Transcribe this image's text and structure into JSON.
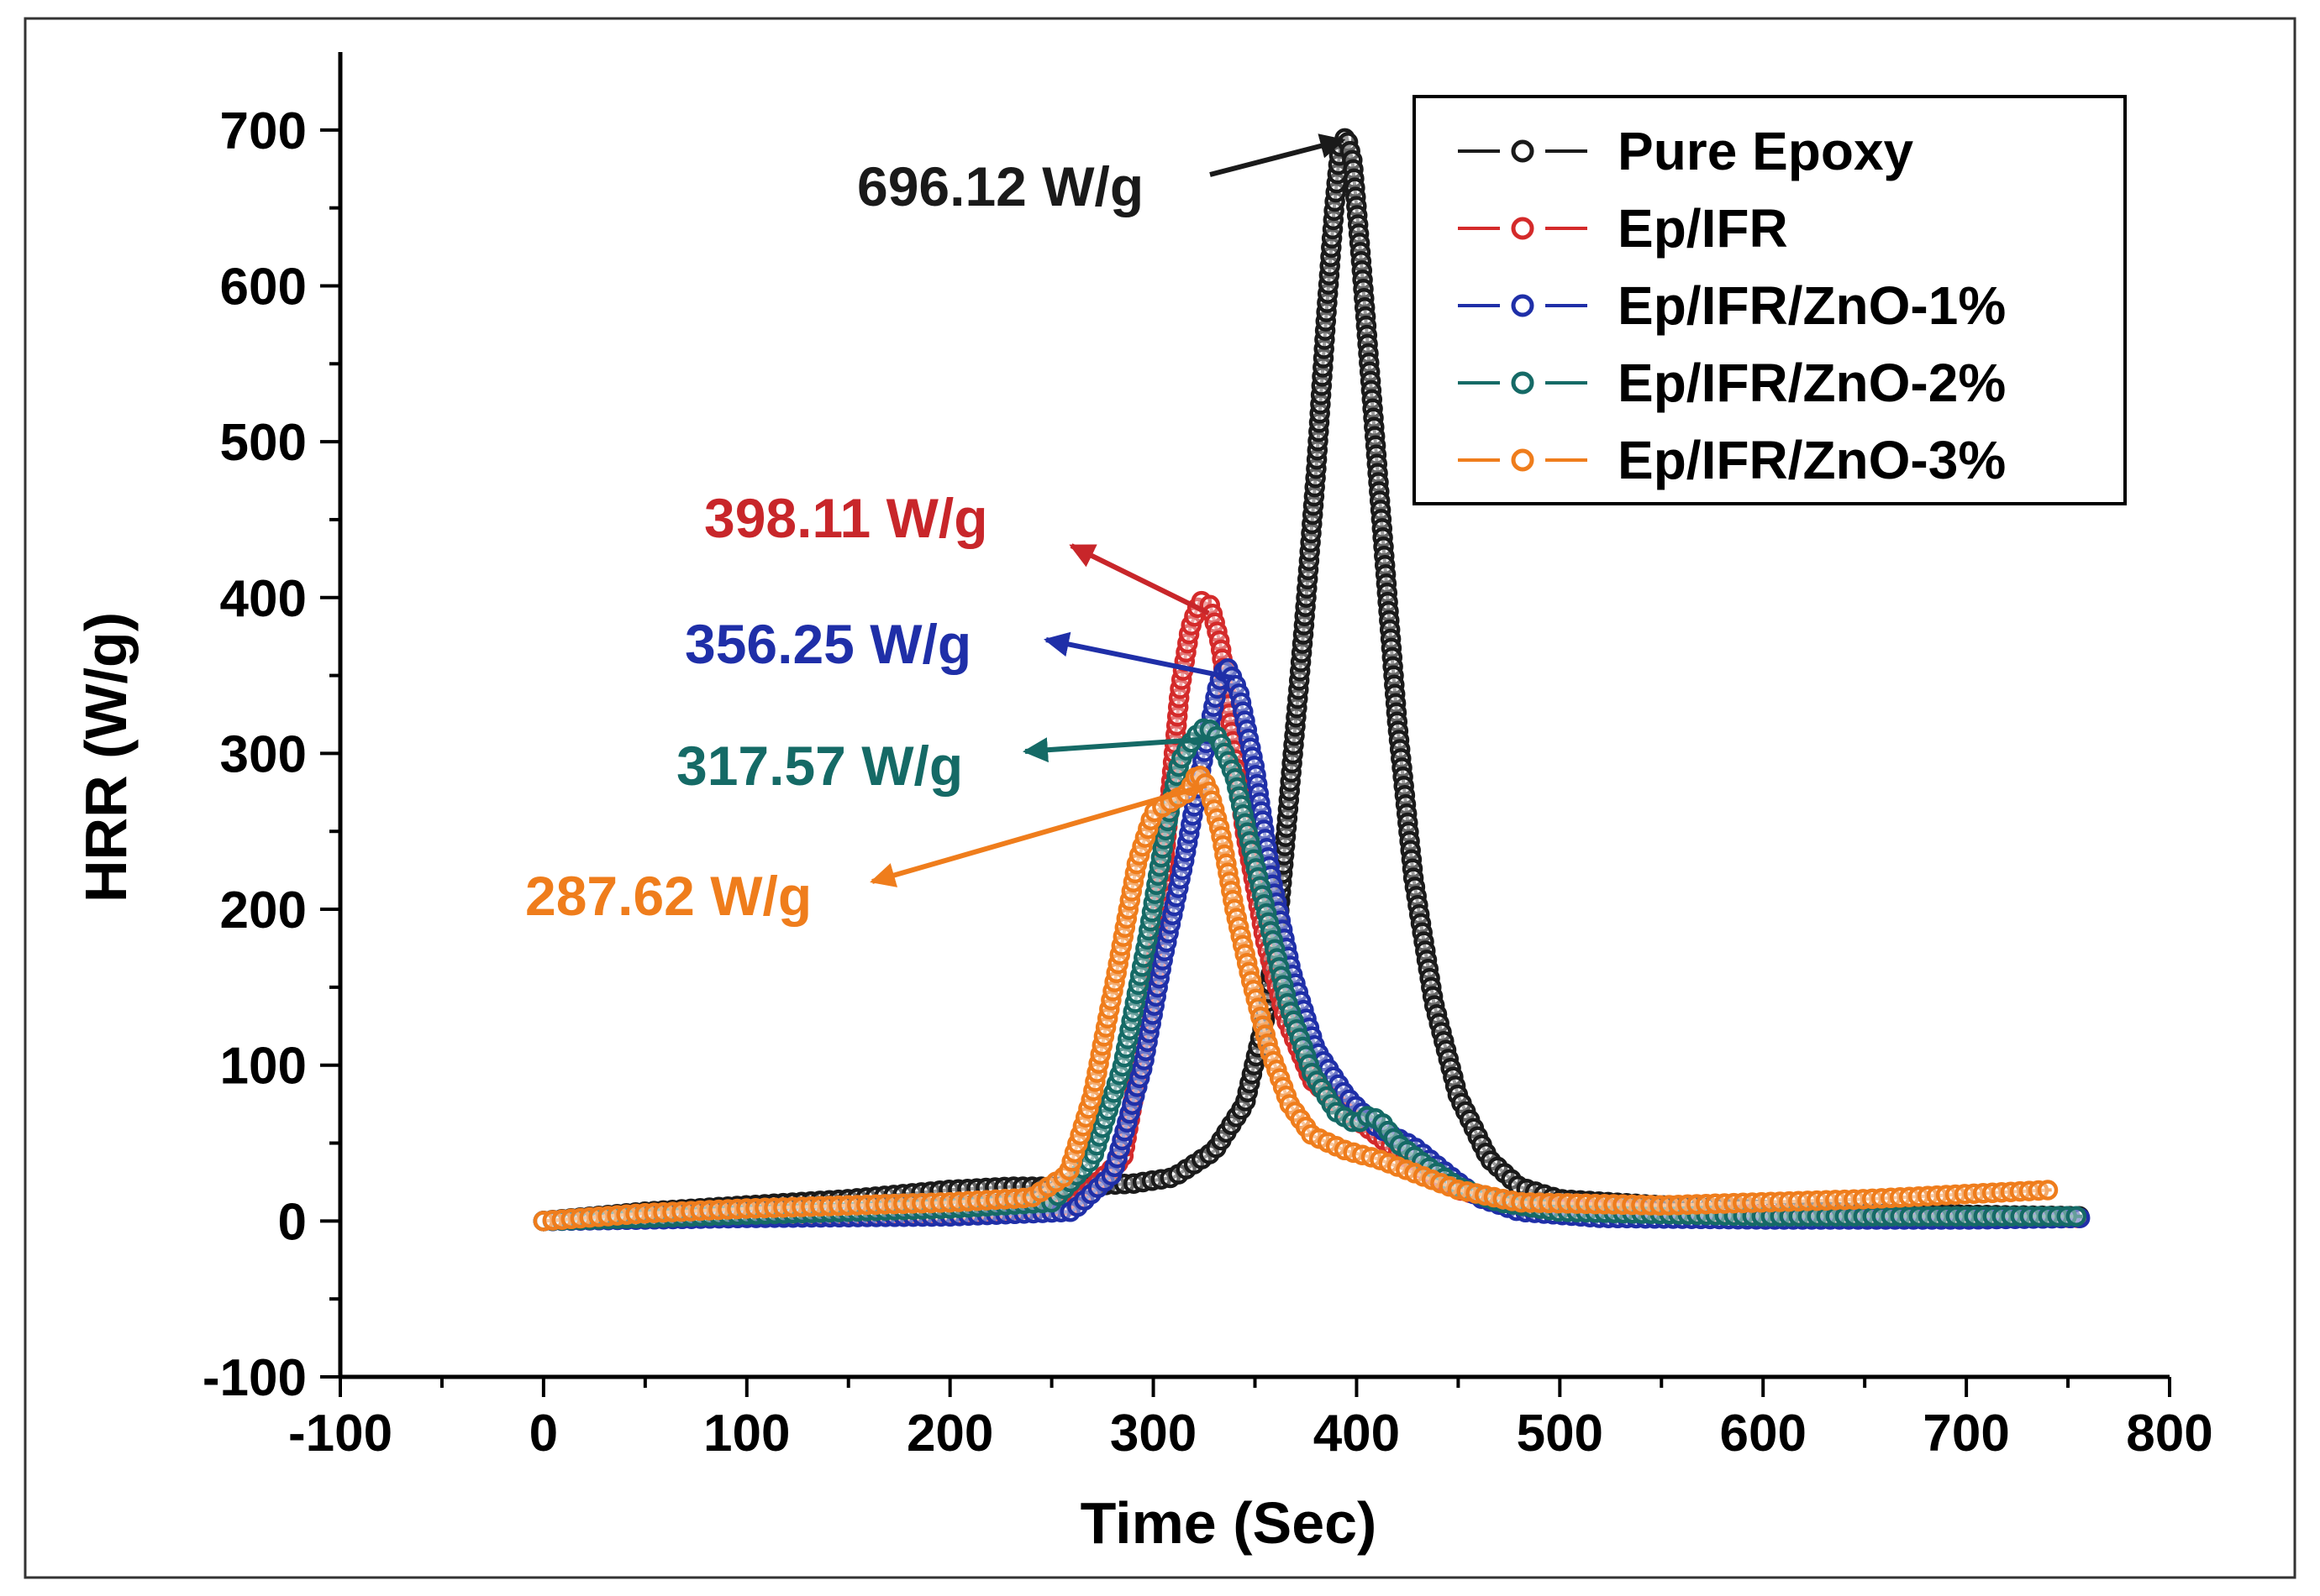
{
  "chart_data": {
    "type": "scatter",
    "title": "",
    "xlabel": "Time (Sec)",
    "ylabel": "HRR (W/g)",
    "xlim": [
      -100,
      800
    ],
    "ylim": [
      -100,
      750
    ],
    "xticks": [
      -100,
      0,
      100,
      200,
      300,
      400,
      500,
      600,
      700,
      800
    ],
    "yticks": [
      -100,
      0,
      100,
      200,
      300,
      400,
      500,
      600,
      700
    ],
    "xtick_labels": [
      "-100",
      "0",
      "100",
      "200",
      "300",
      "400",
      "500",
      "600",
      "700",
      "800"
    ],
    "ytick_labels": [
      "-100",
      "0",
      "100",
      "200",
      "300",
      "400",
      "500",
      "600",
      "700"
    ],
    "grid": false,
    "legend_position": "top-right",
    "series": [
      {
        "name": "Pure Epoxy",
        "color": "#1a1a1a",
        "points": [
          [
            0,
            0
          ],
          [
            50,
            6
          ],
          [
            100,
            10
          ],
          [
            150,
            14
          ],
          [
            200,
            20
          ],
          [
            230,
            22
          ],
          [
            260,
            22
          ],
          [
            290,
            24
          ],
          [
            310,
            28
          ],
          [
            330,
            45
          ],
          [
            345,
            75
          ],
          [
            355,
            130
          ],
          [
            362,
            200
          ],
          [
            368,
            290
          ],
          [
            374,
            380
          ],
          [
            380,
            480
          ],
          [
            385,
            580
          ],
          [
            389,
            650
          ],
          [
            392,
            690
          ],
          [
            395,
            696.12
          ],
          [
            398,
            680
          ],
          [
            402,
            620
          ],
          [
            408,
            520
          ],
          [
            414,
            420
          ],
          [
            420,
            320
          ],
          [
            428,
            220
          ],
          [
            438,
            140
          ],
          [
            450,
            80
          ],
          [
            465,
            40
          ],
          [
            480,
            22
          ],
          [
            500,
            14
          ],
          [
            550,
            10
          ],
          [
            600,
            7
          ],
          [
            650,
            5
          ],
          [
            700,
            4
          ],
          [
            757,
            3
          ]
        ]
      },
      {
        "name": "Ep/IFR",
        "color": "#d42a2a",
        "points": [
          [
            0,
            0
          ],
          [
            100,
            3
          ],
          [
            200,
            4
          ],
          [
            260,
            10
          ],
          [
            285,
            40
          ],
          [
            300,
            150
          ],
          [
            308,
            270
          ],
          [
            313,
            340
          ],
          [
            318,
            380
          ],
          [
            323,
            398.11
          ],
          [
            328,
            395
          ],
          [
            333,
            370
          ],
          [
            338,
            320
          ],
          [
            345,
            250
          ],
          [
            355,
            180
          ],
          [
            365,
            130
          ],
          [
            378,
            90
          ],
          [
            395,
            70
          ],
          [
            410,
            55
          ],
          [
            430,
            35
          ],
          [
            450,
            20
          ],
          [
            480,
            10
          ],
          [
            550,
            5
          ],
          [
            650,
            3
          ],
          [
            757,
            2
          ]
        ]
      },
      {
        "name": "Ep/IFR/ZnO-1%",
        "color": "#1f2fa8",
        "points": [
          [
            0,
            0
          ],
          [
            100,
            2
          ],
          [
            200,
            3
          ],
          [
            260,
            6
          ],
          [
            280,
            30
          ],
          [
            295,
            100
          ],
          [
            305,
            170
          ],
          [
            315,
            230
          ],
          [
            325,
            300
          ],
          [
            332,
            345
          ],
          [
            336,
            356.25
          ],
          [
            342,
            340
          ],
          [
            350,
            290
          ],
          [
            358,
            220
          ],
          [
            368,
            160
          ],
          [
            380,
            110
          ],
          [
            395,
            80
          ],
          [
            410,
            60
          ],
          [
            428,
            48
          ],
          [
            445,
            30
          ],
          [
            460,
            15
          ],
          [
            480,
            6
          ],
          [
            520,
            2
          ],
          [
            600,
            1
          ],
          [
            700,
            1
          ],
          [
            757,
            2
          ]
        ]
      },
      {
        "name": "Ep/IFR/ZnO-2%",
        "color": "#156a66",
        "points": [
          [
            0,
            0
          ],
          [
            100,
            4
          ],
          [
            200,
            8
          ],
          [
            250,
            12
          ],
          [
            270,
            40
          ],
          [
            285,
            100
          ],
          [
            297,
            180
          ],
          [
            306,
            250
          ],
          [
            313,
            295
          ],
          [
            320,
            310
          ],
          [
            326,
            317.57
          ],
          [
            332,
            310
          ],
          [
            340,
            285
          ],
          [
            348,
            240
          ],
          [
            357,
            190
          ],
          [
            366,
            140
          ],
          [
            378,
            95
          ],
          [
            390,
            70
          ],
          [
            400,
            62
          ],
          [
            406,
            68
          ],
          [
            412,
            64
          ],
          [
            420,
            50
          ],
          [
            435,
            35
          ],
          [
            450,
            22
          ],
          [
            470,
            12
          ],
          [
            500,
            6
          ],
          [
            600,
            3
          ],
          [
            700,
            3
          ],
          [
            757,
            3
          ]
        ]
      },
      {
        "name": "Ep/IFR/ZnO-3%",
        "color": "#ef7d1c",
        "points": [
          [
            0,
            0
          ],
          [
            50,
            5
          ],
          [
            100,
            8
          ],
          [
            150,
            10
          ],
          [
            200,
            12
          ],
          [
            240,
            15
          ],
          [
            258,
            30
          ],
          [
            270,
            80
          ],
          [
            282,
            160
          ],
          [
            292,
            230
          ],
          [
            300,
            262
          ],
          [
            310,
            270
          ],
          [
            317,
            275
          ],
          [
            322,
            287.62
          ],
          [
            327,
            278
          ],
          [
            333,
            250
          ],
          [
            340,
            200
          ],
          [
            348,
            155
          ],
          [
            357,
            110
          ],
          [
            367,
            75
          ],
          [
            378,
            55
          ],
          [
            395,
            45
          ],
          [
            410,
            40
          ],
          [
            430,
            30
          ],
          [
            450,
            20
          ],
          [
            480,
            12
          ],
          [
            550,
            10
          ],
          [
            650,
            14
          ],
          [
            742,
            20
          ]
        ]
      }
    ],
    "annotations": [
      {
        "text": "696.12 W/g",
        "series": "Pure Epoxy",
        "point": [
          395,
          696.12
        ],
        "color": "#1a1a1a"
      },
      {
        "text": "398.11 W/g",
        "series": "Ep/IFR",
        "point": [
          323,
          398.11
        ],
        "color": "#c8262a"
      },
      {
        "text": "356.25 W/g",
        "series": "Ep/IFR/ZnO-1%",
        "point": [
          336,
          356.25
        ],
        "color": "#1f2fa8"
      },
      {
        "text": "317.57 W/g",
        "series": "Ep/IFR/ZnO-2%",
        "point": [
          326,
          317.57
        ],
        "color": "#156a66"
      },
      {
        "text": "287.62 W/g",
        "series": "Ep/IFR/ZnO-3%",
        "point": [
          322,
          287.62
        ],
        "color": "#ef7d1c"
      }
    ]
  }
}
